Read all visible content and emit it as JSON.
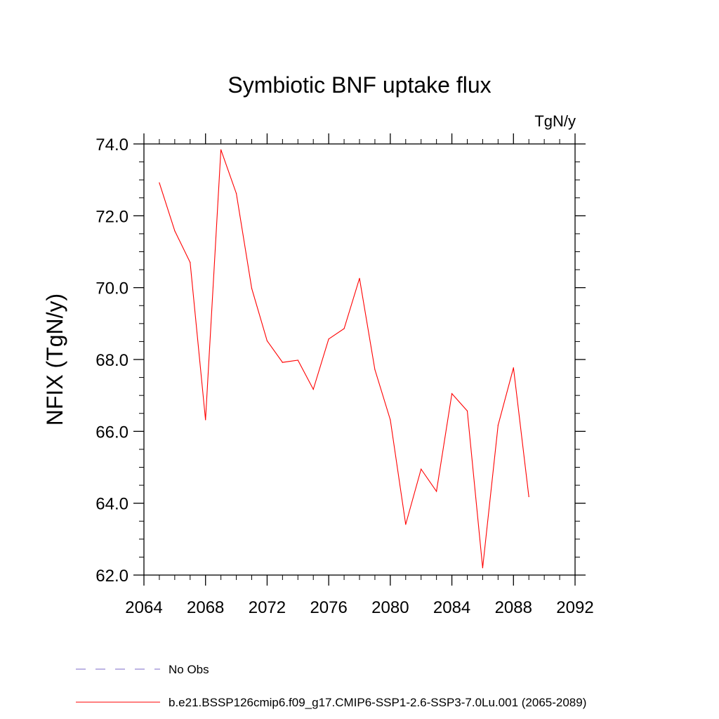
{
  "chart_data": {
    "type": "line",
    "title": "Symbiotic BNF uptake flux",
    "units": "TgN/y",
    "xlabel": "",
    "ylabel": "NFIX  (TgN/y)",
    "xlim": [
      2064,
      2092
    ],
    "ylim": [
      62.0,
      74.0
    ],
    "x_ticks": [
      2064,
      2068,
      2072,
      2076,
      2080,
      2084,
      2088,
      2092
    ],
    "x_tick_labels": [
      "2064",
      "2068",
      "2072",
      "2076",
      "2080",
      "2084",
      "2088",
      "2092"
    ],
    "y_ticks": [
      62.0,
      64.0,
      66.0,
      68.0,
      70.0,
      72.0,
      74.0
    ],
    "y_tick_labels": [
      "62.0",
      "64.0",
      "66.0",
      "68.0",
      "70.0",
      "72.0",
      "74.0"
    ],
    "grid": false,
    "legend_position": "bottom-left",
    "series": [
      {
        "name": "b.e21.BSSP126cmip6.f09_g17.CMIP6-SSP1-2.6-SSP3-7.0Lu.001 (2065-2089)",
        "color": "#ff0000",
        "style": "solid",
        "x": [
          2065,
          2066,
          2067,
          2068,
          2069,
          2070,
          2071,
          2072,
          2073,
          2074,
          2075,
          2076,
          2077,
          2078,
          2079,
          2080,
          2081,
          2082,
          2083,
          2084,
          2085,
          2086,
          2087,
          2088,
          2089
        ],
        "y": [
          72.92,
          71.58,
          70.7,
          66.32,
          73.84,
          72.62,
          69.98,
          68.52,
          67.92,
          67.98,
          67.17,
          68.57,
          68.86,
          70.26,
          67.72,
          66.32,
          63.41,
          64.95,
          64.33,
          67.05,
          66.57,
          62.2,
          66.17,
          67.77,
          64.18
        ]
      }
    ],
    "legend": [
      {
        "label": "No Obs",
        "color": "#7b68c8",
        "style": "dashed"
      },
      {
        "label": "b.e21.BSSP126cmip6.f09_g17.CMIP6-SSP1-2.6-SSP3-7.0Lu.001 (2065-2089)",
        "color": "#ff0000",
        "style": "solid"
      }
    ]
  }
}
